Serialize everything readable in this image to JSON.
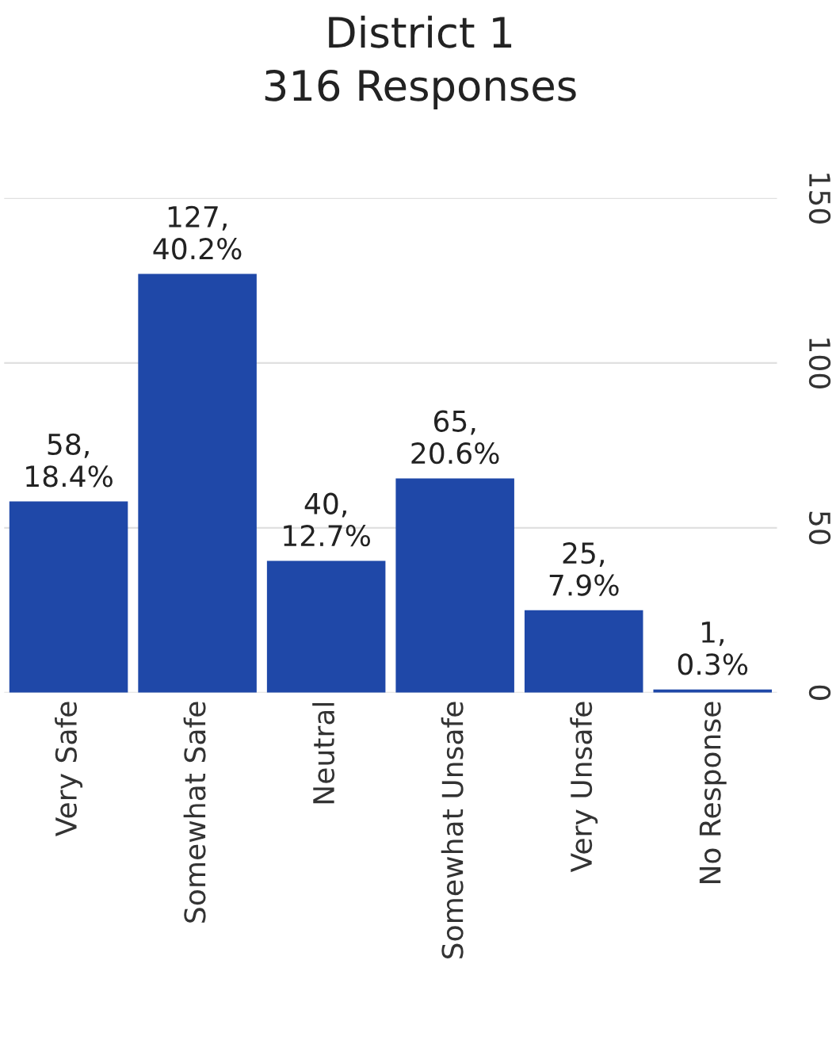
{
  "chart_data": {
    "type": "bar",
    "title": "District 1\n316 Responses",
    "categories": [
      "Very Safe",
      "Somewhat Safe",
      "Neutral",
      "Somewhat Unsafe",
      "Very Unsafe",
      "No Response"
    ],
    "values": [
      58,
      127,
      40,
      65,
      25,
      1
    ],
    "value_labels": [
      "58,\n18.4%",
      "127,\n40.2%",
      "40,\n12.7%",
      "65,\n20.6%",
      "25,\n7.9%",
      "1,\n0.3%"
    ],
    "color": "#1f48a8",
    "ylim": [
      0,
      150
    ],
    "yticks": [
      0,
      50,
      100,
      150
    ],
    "grid": "y"
  }
}
